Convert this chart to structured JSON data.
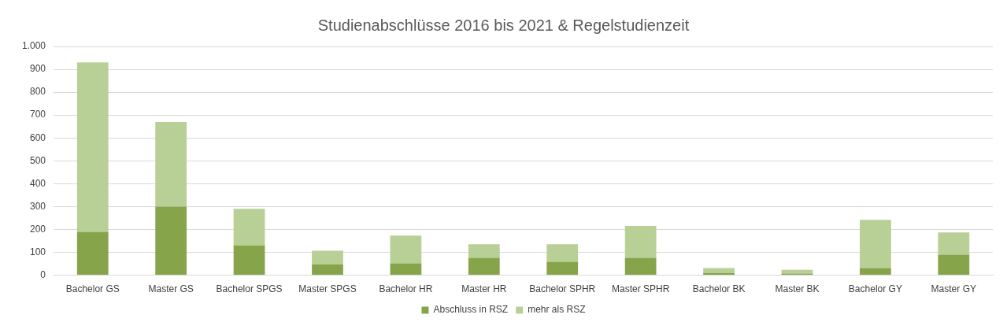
{
  "chart_data": {
    "type": "bar",
    "title": "Studienabschlüsse 2016 bis 2021 & Regelstudienzeit",
    "categories": [
      "Bachelor GS",
      "Master GS",
      "Bachelor SPGS",
      "Master SPGS",
      "Bachelor HR",
      "Master HR",
      "Bachelor SPHR",
      "Master SPHR",
      "Bachelor BK",
      "Master BK",
      "Bachelor GY",
      "Master GY"
    ],
    "stacked": true,
    "series": [
      {
        "name": "Abschluss in RSZ",
        "color": "#86a54b",
        "values": [
          190,
          300,
          130,
          48,
          52,
          76,
          59,
          76,
          10,
          7,
          31,
          90
        ]
      },
      {
        "name": "mehr als RSZ",
        "color": "#b8cf96",
        "values": [
          740,
          370,
          160,
          59,
          121,
          59,
          76,
          139,
          21,
          17,
          211,
          97
        ]
      }
    ],
    "ylim": [
      0,
      1000
    ],
    "yticks": [
      0,
      100,
      200,
      300,
      400,
      500,
      600,
      700,
      800,
      900,
      {
        "value": 1000,
        "label": "1.000"
      }
    ],
    "grid": "y",
    "legend": "bottom"
  }
}
